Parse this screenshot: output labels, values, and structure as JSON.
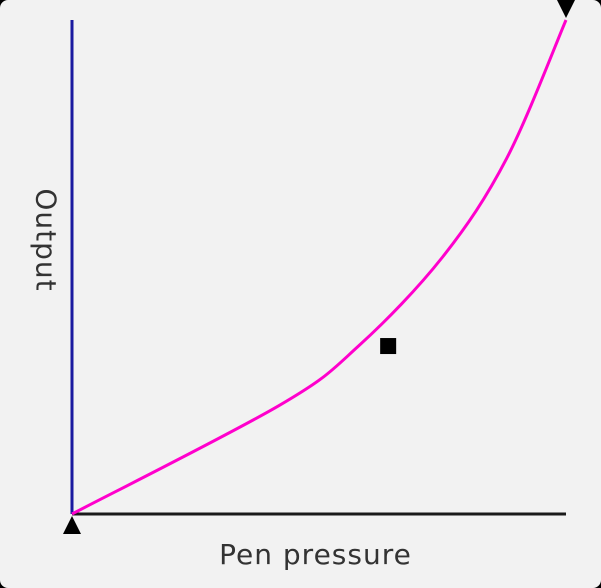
{
  "editor": {
    "x_axis_label": "Pen pressure",
    "y_axis_label": "Output"
  },
  "curve": {
    "color": "#ff00cc",
    "points": [
      [
        0,
        0
      ],
      [
        0.42,
        0.22
      ],
      [
        0.58,
        0.34
      ],
      [
        0.75,
        0.52
      ],
      [
        0.88,
        0.72
      ],
      [
        1,
        1
      ]
    ],
    "control_point": [
      0.64,
      0.34
    ]
  },
  "colors": {
    "background": "#f2f2f2",
    "y_axis": "#1a1aa0",
    "x_axis": "#1a1a1a",
    "handle": "#000000",
    "label": "#333333"
  }
}
